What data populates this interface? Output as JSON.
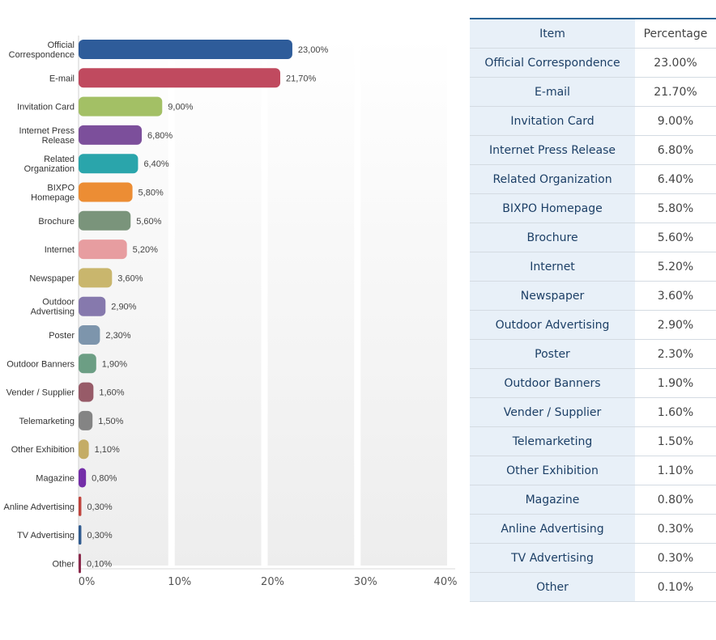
{
  "chart_data": {
    "type": "bar",
    "orientation": "horizontal",
    "categories": [
      "Official Correspondence",
      "E-mail",
      "Invitation Card",
      "Internet Press Release",
      "Related Organization",
      "BIXPO Homepage",
      "Brochure",
      "Internet",
      "Newspaper",
      "Outdoor Advertising",
      "Poster",
      "Outdoor Banners",
      "Vender / Supplier",
      "Telemarketing",
      "Other Exhibition",
      "Magazine",
      "Anline Advertising",
      "TV Advertising",
      "Other"
    ],
    "axis_labels": [
      [
        "Official",
        "Correspondence"
      ],
      [
        "E-mail"
      ],
      [
        "Invitation Card"
      ],
      [
        "Internet Press",
        "Release"
      ],
      [
        "Related",
        "Organization"
      ],
      [
        "BIXPO",
        "Homepage"
      ],
      [
        "Brochure"
      ],
      [
        "Internet"
      ],
      [
        "Newspaper"
      ],
      [
        "Outdoor",
        "Advertising"
      ],
      [
        "Poster"
      ],
      [
        "Outdoor Banners"
      ],
      [
        "Vender / Supplier"
      ],
      [
        "Telemarketing"
      ],
      [
        "Other Exhibition"
      ],
      [
        "Magazine"
      ],
      [
        "Anline Advertising"
      ],
      [
        "TV Advertising"
      ],
      [
        "Other"
      ]
    ],
    "values": [
      23.0,
      21.7,
      9.0,
      6.8,
      6.4,
      5.8,
      5.6,
      5.2,
      3.6,
      2.9,
      2.3,
      1.9,
      1.6,
      1.5,
      1.1,
      0.8,
      0.3,
      0.3,
      0.1
    ],
    "data_labels": [
      "23,00%",
      "21,70%",
      "9,00%",
      "6,80%",
      "6,40%",
      "5,80%",
      "5,60%",
      "5,20%",
      "3,60%",
      "2,90%",
      "2,30%",
      "1,90%",
      "1,60%",
      "1,50%",
      "1,10%",
      "0,80%",
      "0,30%",
      "0,30%",
      "0,10%"
    ],
    "colors": [
      "#2e5c9a",
      "#c04a5f",
      "#a3c065",
      "#7c4f9b",
      "#2aa5ab",
      "#ec8d34",
      "#7a947b",
      "#e79da0",
      "#c9b66d",
      "#8679ad",
      "#7d95ac",
      "#6c9e84",
      "#975b68",
      "#848484",
      "#c4ac66",
      "#742ea8",
      "#c0443d",
      "#2f5a8f",
      "#8b2a4c"
    ],
    "xlim": [
      0,
      40
    ],
    "xticks": [
      0,
      10,
      20,
      30,
      40
    ],
    "xtick_labels": [
      "0%",
      "10%",
      "20%",
      "30%",
      "40%"
    ],
    "grid": true
  },
  "table": {
    "headers": [
      "Item",
      "Percentage"
    ],
    "rows": [
      [
        "Official Correspondence",
        "23.00%"
      ],
      [
        "E-mail",
        "21.70%"
      ],
      [
        "Invitation Card",
        "9.00%"
      ],
      [
        "Internet Press Release",
        "6.80%"
      ],
      [
        "Related Organization",
        "6.40%"
      ],
      [
        "BIXPO Homepage",
        "5.80%"
      ],
      [
        "Brochure",
        "5.60%"
      ],
      [
        "Internet",
        "5.20%"
      ],
      [
        "Newspaper",
        "3.60%"
      ],
      [
        "Outdoor Advertising",
        "2.90%"
      ],
      [
        "Poster",
        "2.30%"
      ],
      [
        "Outdoor Banners",
        "1.90%"
      ],
      [
        "Vender / Supplier",
        "1.60%"
      ],
      [
        "Telemarketing",
        "1.50%"
      ],
      [
        "Other Exhibition",
        "1.10%"
      ],
      [
        "Magazine",
        "0.80%"
      ],
      [
        "Anline Advertising",
        "0.30%"
      ],
      [
        "TV Advertising",
        "0.30%"
      ],
      [
        "Other",
        "0.10%"
      ]
    ]
  }
}
